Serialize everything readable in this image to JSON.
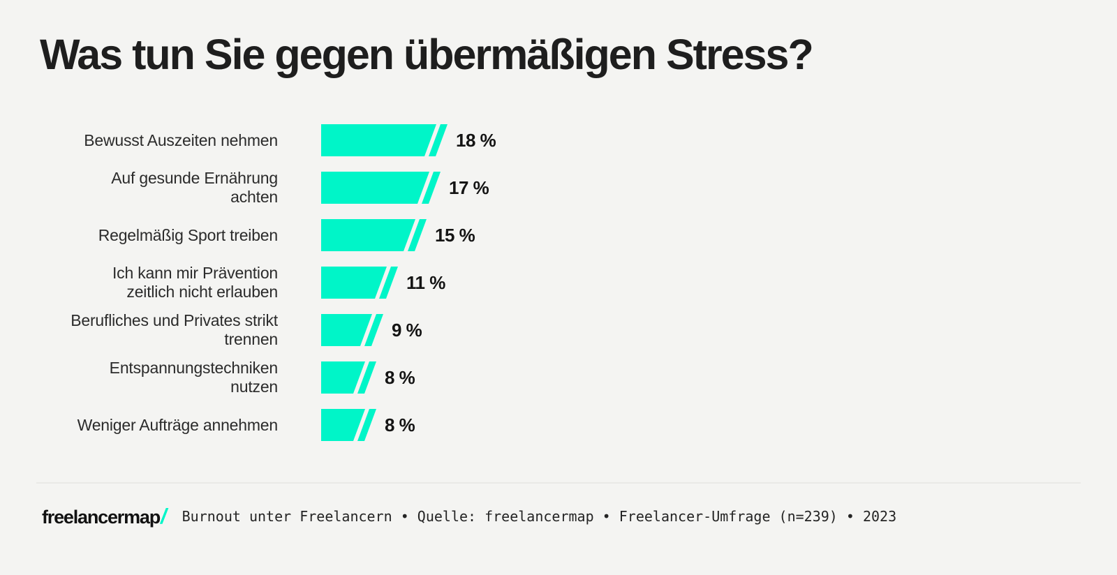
{
  "title": "Was tun Sie gegen übermäßigen Stress?",
  "chart_data": {
    "type": "bar",
    "orientation": "horizontal",
    "title": "Was tun Sie gegen übermäßigen Stress?",
    "unit": "%",
    "categories": [
      "Bewusst Auszeiten nehmen",
      "Auf gesunde Ernährung achten",
      "Regelmäßig Sport treiben",
      "Ich kann mir Prävention zeitlich nicht erlauben",
      "Berufliches und Privates strikt trennen",
      "Entspannungstechniken nutzen",
      "Weniger Aufträge annehmen"
    ],
    "category_display_lines": [
      "Bewusst Auszeiten nehmen",
      "Auf gesunde Ernährung\nachten",
      "Regelmäßig Sport treiben",
      "Ich kann mir Prävention\nzeitlich nicht erlauben",
      "Berufliches und Privates strikt\ntrennen",
      "Entspannungstechniken\nnutzen",
      "Weniger Aufträge annehmen"
    ],
    "values": [
      18,
      17,
      15,
      11,
      9,
      8,
      8
    ],
    "value_labels": [
      "18 %",
      "17 %",
      "15 %",
      "11 %",
      "9 %",
      "8 %",
      "8 %"
    ],
    "xlim": [
      0,
      20
    ],
    "grid": false,
    "legend": false,
    "bar_color": "#00F5C8",
    "bar_end_style": "slanted-with-slash-accent"
  },
  "footer": {
    "logo_text": "freelancermap",
    "logo_slash": "/",
    "source_text": "Burnout unter Freelancern • Quelle: freelancermap • Freelancer-Umfrage (n=239) • 2023"
  },
  "colors": {
    "accent": "#00F5C8",
    "background": "#f4f4f2",
    "title_text": "#1e1e1e",
    "label_text": "#2b2b2b",
    "value_text": "#141414",
    "divider": "#e9e9e6",
    "footer_text": "#242424",
    "logo_text": "#121212"
  }
}
